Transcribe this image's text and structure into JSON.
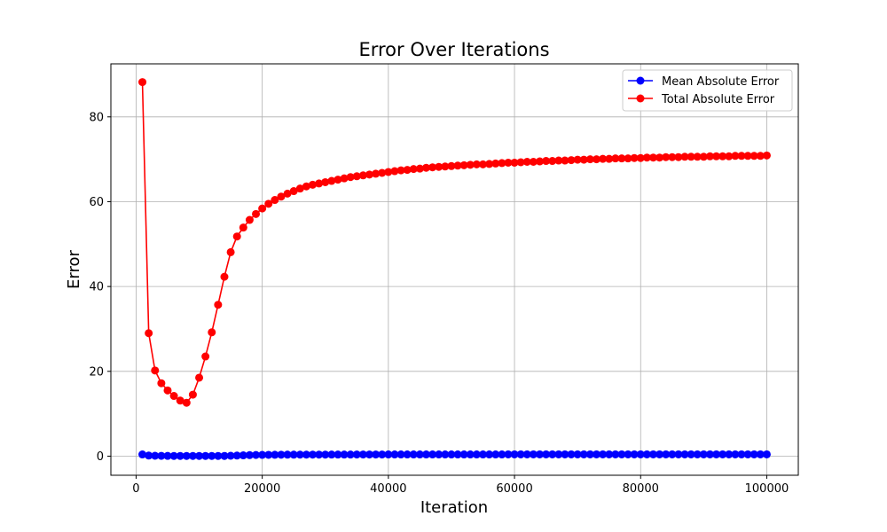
{
  "chart_data": {
    "type": "line",
    "title": "Error Over Iterations",
    "xlabel": "Iteration",
    "ylabel": "Error",
    "xlim": [
      -4000,
      105000
    ],
    "ylim": [
      -4.5,
      92.5
    ],
    "grid": true,
    "legend_position": "top-right",
    "x_ticks": [
      0,
      20000,
      40000,
      60000,
      80000,
      100000
    ],
    "x_tick_labels": [
      "0",
      "20000",
      "40000",
      "60000",
      "80000",
      "100000"
    ],
    "y_ticks": [
      0,
      20,
      40,
      60,
      80
    ],
    "y_tick_labels": [
      "0",
      "20",
      "40",
      "60",
      "80"
    ],
    "x": [
      1000,
      2000,
      3000,
      4000,
      5000,
      6000,
      7000,
      8000,
      9000,
      10000,
      11000,
      12000,
      13000,
      14000,
      15000,
      16000,
      17000,
      18000,
      19000,
      20000,
      21000,
      22000,
      23000,
      24000,
      25000,
      26000,
      27000,
      28000,
      29000,
      30000,
      31000,
      32000,
      33000,
      34000,
      35000,
      36000,
      37000,
      38000,
      39000,
      40000,
      41000,
      42000,
      43000,
      44000,
      45000,
      46000,
      47000,
      48000,
      49000,
      50000,
      51000,
      52000,
      53000,
      54000,
      55000,
      56000,
      57000,
      58000,
      59000,
      60000,
      61000,
      62000,
      63000,
      64000,
      65000,
      66000,
      67000,
      68000,
      69000,
      70000,
      71000,
      72000,
      73000,
      74000,
      75000,
      76000,
      77000,
      78000,
      79000,
      80000,
      81000,
      82000,
      83000,
      84000,
      85000,
      86000,
      87000,
      88000,
      89000,
      90000,
      91000,
      92000,
      93000,
      94000,
      95000,
      96000,
      97000,
      98000,
      99000,
      100000
    ],
    "series": [
      {
        "name": "Mean Absolute Error",
        "color": "#0000ff",
        "marker": "circle",
        "values": [
          0.4,
          0.15,
          0.1,
          0.08,
          0.07,
          0.06,
          0.06,
          0.06,
          0.06,
          0.06,
          0.06,
          0.06,
          0.06,
          0.06,
          0.1,
          0.15,
          0.2,
          0.25,
          0.28,
          0.3,
          0.32,
          0.33,
          0.34,
          0.35,
          0.35,
          0.36,
          0.36,
          0.37,
          0.37,
          0.37,
          0.38,
          0.38,
          0.38,
          0.38,
          0.39,
          0.39,
          0.39,
          0.39,
          0.39,
          0.4,
          0.4,
          0.4,
          0.4,
          0.4,
          0.4,
          0.4,
          0.4,
          0.41,
          0.41,
          0.41,
          0.41,
          0.41,
          0.41,
          0.41,
          0.41,
          0.41,
          0.41,
          0.41,
          0.42,
          0.42,
          0.42,
          0.42,
          0.42,
          0.42,
          0.42,
          0.42,
          0.42,
          0.42,
          0.42,
          0.42,
          0.42,
          0.42,
          0.42,
          0.42,
          0.42,
          0.42,
          0.42,
          0.42,
          0.42,
          0.42,
          0.42,
          0.42,
          0.42,
          0.42,
          0.42,
          0.42,
          0.42,
          0.42,
          0.42,
          0.42,
          0.42,
          0.42,
          0.42,
          0.42,
          0.42,
          0.42,
          0.42,
          0.42,
          0.42,
          0.42
        ]
      },
      {
        "name": "Total Absolute Error",
        "color": "#ff0000",
        "marker": "circle",
        "values": [
          88.2,
          29.0,
          20.2,
          17.2,
          15.5,
          14.2,
          13.1,
          12.6,
          14.5,
          18.5,
          23.5,
          29.2,
          35.7,
          42.3,
          48.1,
          51.8,
          53.9,
          55.7,
          57.1,
          58.4,
          59.5,
          60.4,
          61.2,
          61.9,
          62.5,
          63.1,
          63.6,
          64.0,
          64.3,
          64.6,
          64.9,
          65.2,
          65.5,
          65.8,
          66.0,
          66.2,
          66.4,
          66.6,
          66.8,
          67.0,
          67.2,
          67.4,
          67.5,
          67.7,
          67.8,
          68.0,
          68.1,
          68.2,
          68.3,
          68.4,
          68.5,
          68.6,
          68.7,
          68.8,
          68.8,
          68.9,
          69.0,
          69.1,
          69.2,
          69.2,
          69.3,
          69.4,
          69.4,
          69.5,
          69.6,
          69.6,
          69.7,
          69.7,
          69.8,
          69.9,
          69.9,
          70.0,
          70.0,
          70.1,
          70.1,
          70.2,
          70.2,
          70.2,
          70.3,
          70.3,
          70.4,
          70.4,
          70.4,
          70.5,
          70.5,
          70.5,
          70.6,
          70.6,
          70.6,
          70.6,
          70.7,
          70.7,
          70.7,
          70.7,
          70.8,
          70.8,
          70.8,
          70.8,
          70.8,
          70.9
        ]
      }
    ]
  }
}
